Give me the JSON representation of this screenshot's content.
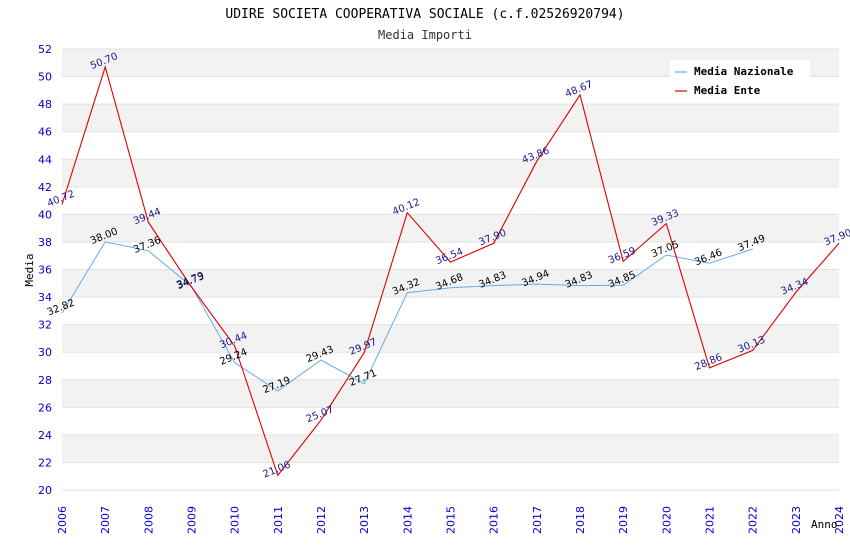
{
  "chart_data": {
    "type": "line",
    "title": "UDIRE SOCIETA COOPERATIVA SOCIALE (c.f.02526920794)",
    "subtitle": "Media Importi",
    "xlabel": "Anno",
    "ylabel": "Media",
    "ylim": [
      20,
      52
    ],
    "y_ticks": [
      "20",
      "22",
      "24",
      "26",
      "28",
      "30",
      "32",
      "34",
      "36",
      "38",
      "40",
      "42",
      "44",
      "46",
      "48",
      "50",
      "52"
    ],
    "x": [
      "2006",
      "2007",
      "2008",
      "2009",
      "2010",
      "2011",
      "2012",
      "2013",
      "2014",
      "2015",
      "2016",
      "2017",
      "2018",
      "2019",
      "2020",
      "2021",
      "2022",
      "2023",
      "2024"
    ],
    "grid": true,
    "legend_position": "top-right",
    "series": [
      {
        "name": "Media Nazionale",
        "color": "#66aaee",
        "values": [
          32.82,
          38.0,
          37.36,
          34.79,
          29.24,
          27.19,
          29.43,
          27.71,
          34.32,
          34.68,
          34.83,
          34.94,
          34.83,
          34.85,
          37.05,
          36.46,
          37.49,
          null,
          null
        ],
        "labels": [
          "32.82",
          "38.00",
          "37.36",
          "34.79",
          "29.24",
          "27.19",
          "29.43",
          "27.71",
          "34.32",
          "34.68",
          "34.83",
          "34.94",
          "34.83",
          "34.85",
          "37.05",
          "36.46",
          "37.49",
          "",
          ""
        ]
      },
      {
        "name": "Media Ente",
        "color": "#dd0000",
        "values": [
          40.72,
          50.7,
          39.44,
          34.73,
          30.44,
          21.06,
          25.07,
          29.97,
          40.12,
          36.54,
          37.9,
          43.86,
          48.67,
          36.59,
          39.33,
          28.86,
          30.13,
          34.34,
          37.9
        ],
        "labels": [
          "40.72",
          "50.70",
          "39.44",
          "34.73",
          "30.44",
          "21.06",
          "25.07",
          "29.97",
          "40.12",
          "36.54",
          "37.90",
          "43.86",
          "48.67",
          "36.59",
          "39.33",
          "28.86",
          "30.13",
          "34.34",
          "37.90"
        ]
      }
    ]
  }
}
